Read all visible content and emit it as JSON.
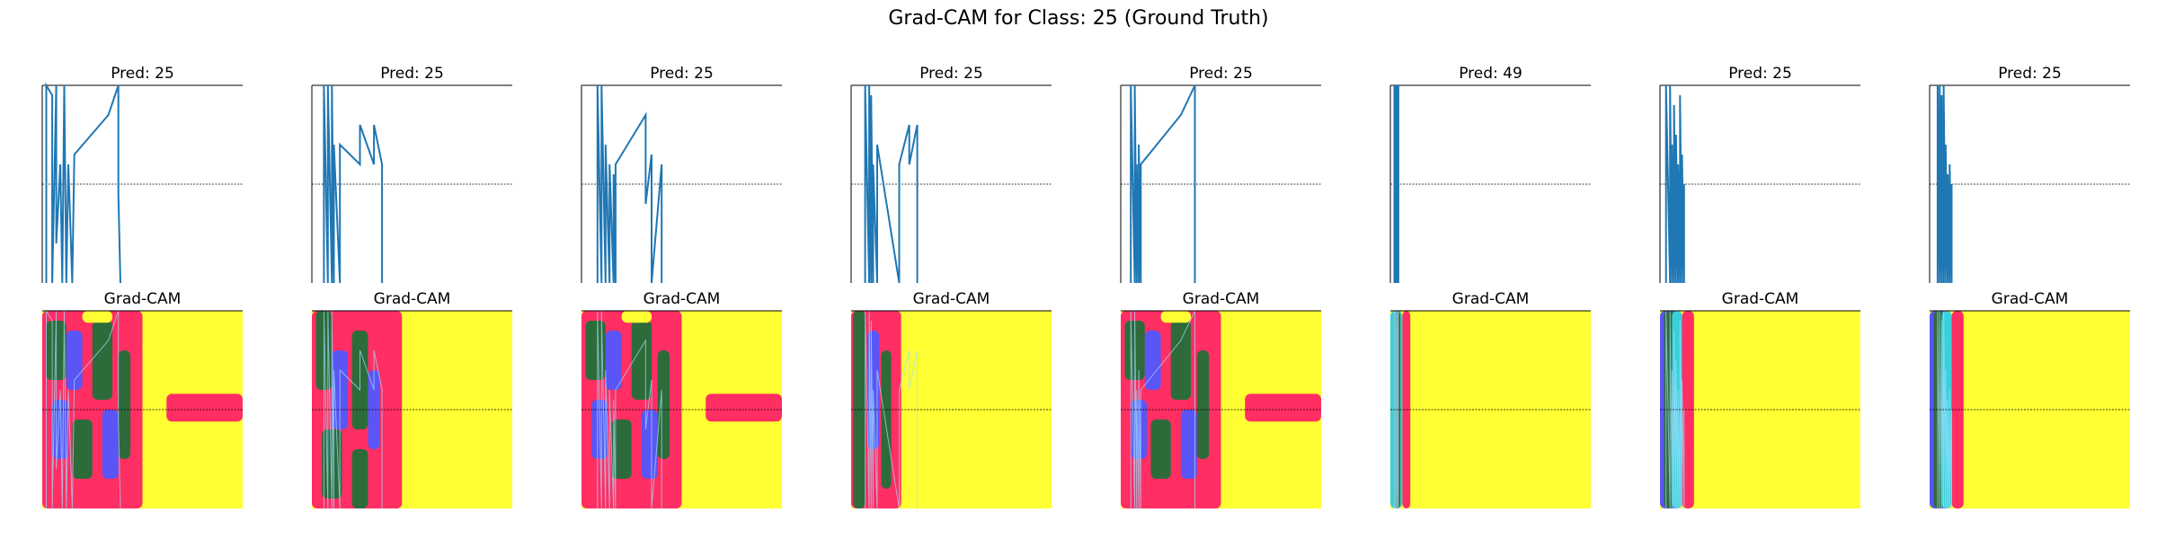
{
  "figure": {
    "title": "Grad-CAM for Class: 25 (Ground Truth)"
  },
  "panels": [
    {
      "pred_title": "Pred: 25",
      "cam_title": "Grad-CAM",
      "cam_style": "spread"
    },
    {
      "pred_title": "Pred: 25",
      "cam_title": "Grad-CAM",
      "cam_style": "left"
    },
    {
      "pred_title": "Pred: 25",
      "cam_title": "Grad-CAM",
      "cam_style": "spread"
    },
    {
      "pred_title": "Pred: 25",
      "cam_title": "Grad-CAM",
      "cam_style": "left-narrow"
    },
    {
      "pred_title": "Pred: 25",
      "cam_title": "Grad-CAM",
      "cam_style": "spread"
    },
    {
      "pred_title": "Pred: 49",
      "cam_title": "Grad-CAM",
      "cam_style": "edge"
    },
    {
      "pred_title": "Pred: 25",
      "cam_title": "Grad-CAM",
      "cam_style": "edge-wide"
    },
    {
      "pred_title": "Pred: 25",
      "cam_title": "Grad-CAM",
      "cam_style": "edge-wide"
    }
  ],
  "chart_data": {
    "type": "line",
    "grid": false,
    "legend": "none",
    "colors": {
      "line": "#1f77b4",
      "cam_low": "#ffff33",
      "cam_mid": "#ff2e63",
      "cam_green": "#2e6b3a",
      "cam_blue": "#5b55f5",
      "cam_cyan": "#39d0d8"
    },
    "note_series": [
      {
        "x": [
          0.02,
          0.02,
          0.05,
          0.05,
          0.07,
          0.07,
          0.09,
          0.1,
          0.11,
          0.12,
          0.13,
          0.15,
          0.16,
          0.33,
          0.38,
          0.38,
          0.39
        ],
        "y": [
          0.0,
          1.0,
          0.95,
          0.0,
          1.0,
          0.2,
          0.6,
          0.0,
          1.0,
          0.0,
          0.6,
          0.0,
          0.65,
          0.85,
          1.0,
          0.45,
          0.0
        ]
      },
      {
        "x": [
          0.06,
          0.06,
          0.08,
          0.08,
          0.1,
          0.1,
          0.11,
          0.11,
          0.14,
          0.14,
          0.24,
          0.24,
          0.31,
          0.31,
          0.35,
          0.35
        ],
        "y": [
          0.0,
          1.0,
          0.0,
          1.0,
          0.0,
          1.0,
          0.0,
          0.7,
          0.0,
          0.7,
          0.6,
          0.8,
          0.6,
          0.8,
          0.6,
          0.0
        ]
      },
      {
        "x": [
          0.08,
          0.08,
          0.1,
          0.1,
          0.12,
          0.12,
          0.14,
          0.14,
          0.16,
          0.16,
          0.17,
          0.17,
          0.32,
          0.32,
          0.35,
          0.35,
          0.4,
          0.4
        ],
        "y": [
          0.0,
          1.0,
          0.0,
          1.0,
          0.0,
          0.7,
          0.0,
          0.6,
          0.0,
          0.55,
          0.0,
          0.6,
          0.85,
          0.4,
          0.65,
          0.0,
          0.6,
          0.0
        ]
      },
      {
        "x": [
          0.07,
          0.07,
          0.09,
          0.09,
          0.1,
          0.1,
          0.11,
          0.11,
          0.13,
          0.13,
          0.24,
          0.24,
          0.29,
          0.29,
          0.33,
          0.33
        ],
        "y": [
          0.0,
          1.0,
          0.0,
          1.0,
          0.0,
          0.95,
          0.0,
          0.6,
          0.0,
          0.7,
          0.0,
          0.6,
          0.8,
          0.6,
          0.8,
          0.0
        ]
      },
      {
        "x": [
          0.05,
          0.05,
          0.07,
          0.07,
          0.08,
          0.08,
          0.09,
          0.09,
          0.1,
          0.1,
          0.3,
          0.37,
          0.37
        ],
        "y": [
          0.0,
          1.0,
          0.0,
          1.0,
          0.0,
          0.6,
          0.0,
          0.7,
          0.0,
          0.6,
          0.85,
          1.0,
          0.0
        ]
      },
      {
        "x": [
          0.02,
          0.02,
          0.025,
          0.025,
          0.03,
          0.03,
          0.035,
          0.035,
          0.04,
          0.04
        ],
        "y": [
          0.0,
          1.0,
          0.0,
          1.0,
          0.0,
          1.0,
          0.0,
          1.0,
          0.0,
          1.0
        ]
      },
      {
        "x": [
          0.03,
          0.03,
          0.05,
          0.05,
          0.06,
          0.06,
          0.07,
          0.07,
          0.08,
          0.08,
          0.09,
          0.09,
          0.1,
          0.1,
          0.11,
          0.11,
          0.12,
          0.12
        ],
        "y": [
          0.0,
          1.0,
          0.0,
          1.0,
          0.0,
          0.7,
          0.0,
          0.9,
          0.0,
          0.75,
          0.0,
          0.6,
          0.0,
          0.95,
          0.0,
          0.65,
          0.0,
          0.5
        ]
      },
      {
        "x": [
          0.04,
          0.04,
          0.05,
          0.05,
          0.06,
          0.06,
          0.07,
          0.07,
          0.08,
          0.08,
          0.09,
          0.09,
          0.1,
          0.1,
          0.11,
          0.11
        ],
        "y": [
          0.0,
          1.0,
          0.0,
          1.0,
          0.0,
          0.95,
          0.0,
          1.0,
          0.0,
          0.7,
          0.0,
          0.55,
          0.0,
          0.6,
          0.0,
          0.5
        ]
      }
    ]
  }
}
